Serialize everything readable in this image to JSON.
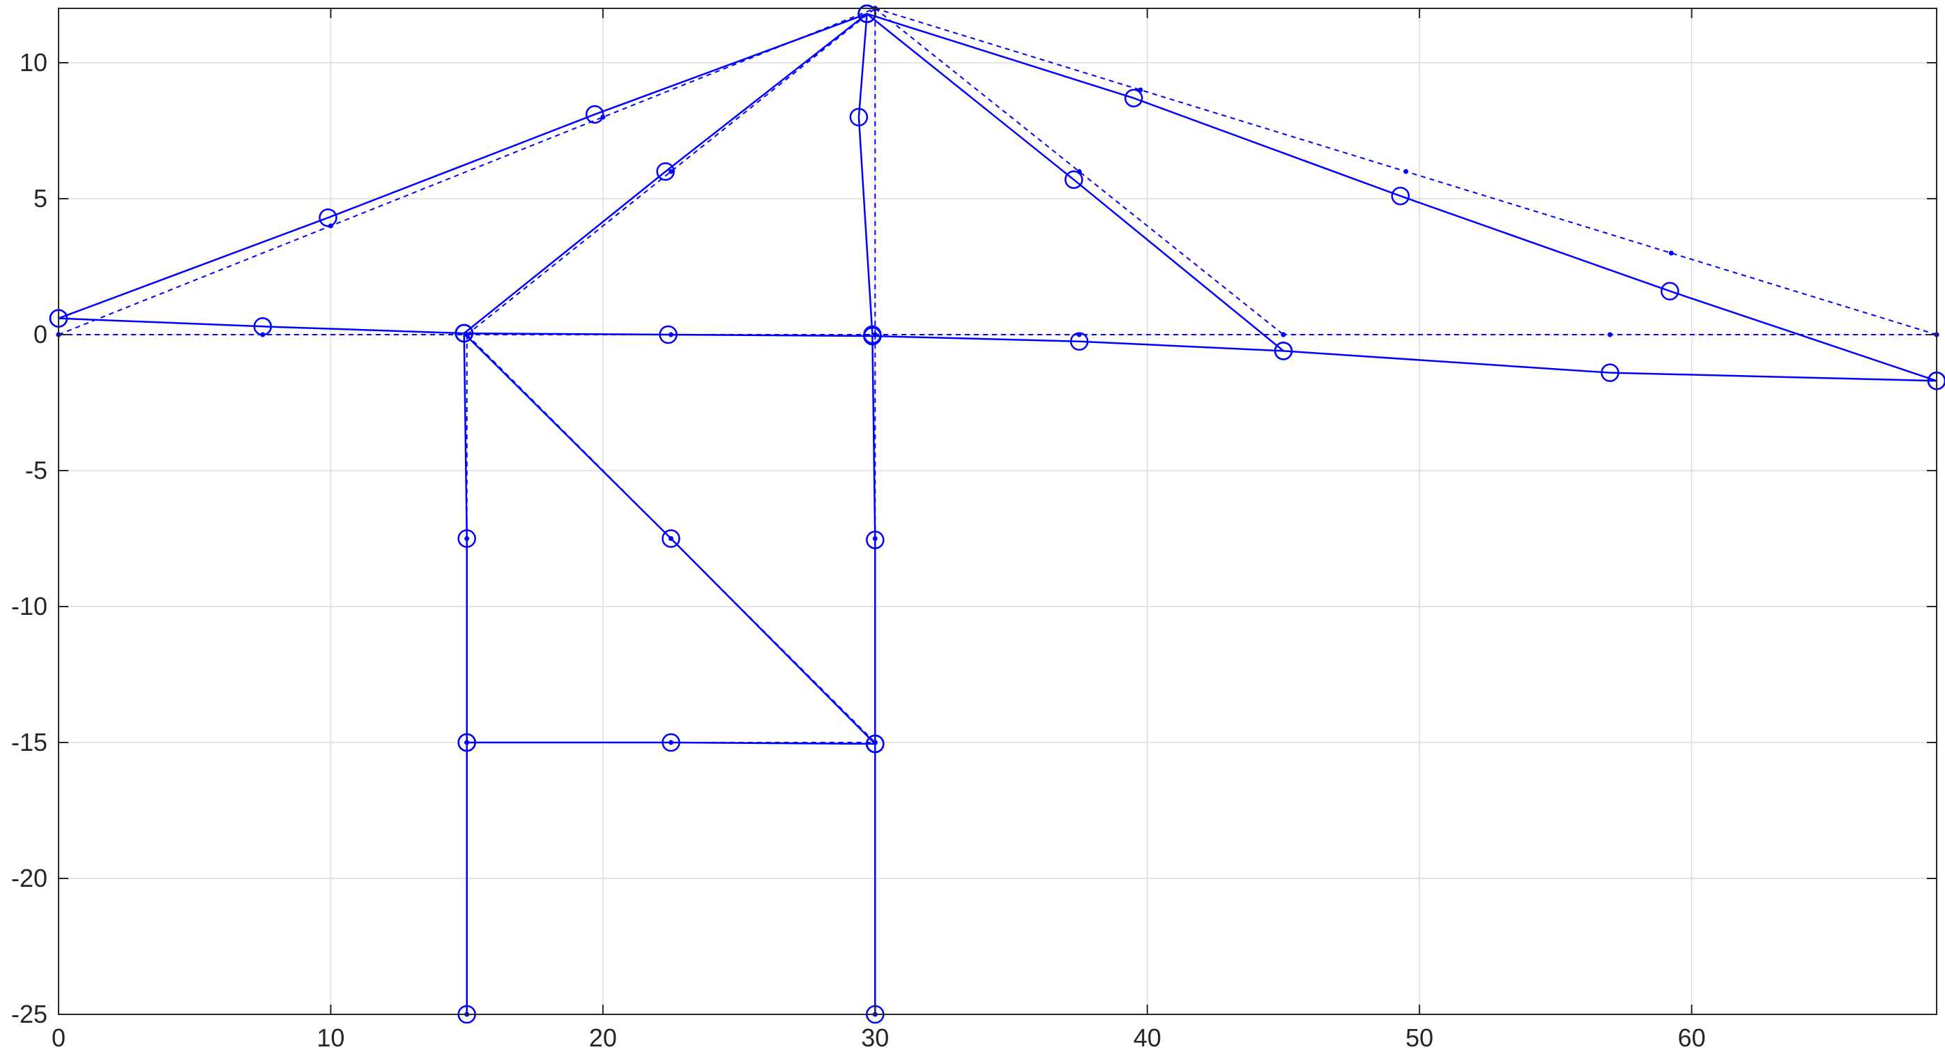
{
  "chart_data": {
    "type": "line",
    "title": "",
    "xlabel": "",
    "ylabel": "",
    "xlim": [
      0,
      69
    ],
    "ylim": [
      -25,
      12
    ],
    "xticks": [
      0,
      10,
      20,
      30,
      40,
      50,
      60
    ],
    "yticks": [
      -25,
      -20,
      -15,
      -10,
      -5,
      0,
      5,
      10
    ],
    "xtick_labels": [
      "0",
      "10",
      "20",
      "30",
      "40",
      "50",
      "60"
    ],
    "ytick_labels": [
      "-25",
      "-20",
      "-15",
      "-10",
      "-5",
      "0",
      "5",
      "10"
    ],
    "grid": true,
    "line_color": "#0000ff",
    "series": [
      {
        "style": "dashed",
        "marker": "dot",
        "members": [
          {
            "x": [
              0,
              10,
              20,
              30
            ],
            "y": [
              0,
              4,
              8,
              12
            ]
          },
          {
            "x": [
              15,
              22.5,
              30
            ],
            "y": [
              0,
              6,
              12
            ]
          },
          {
            "x": [
              30,
              30
            ],
            "y": [
              0,
              12
            ]
          },
          {
            "x": [
              30,
              37.5,
              45
            ],
            "y": [
              12,
              6,
              0
            ]
          },
          {
            "x": [
              30,
              39.75,
              49.5,
              59.25,
              69
            ],
            "y": [
              12,
              9,
              6,
              3,
              0
            ]
          },
          {
            "x": [
              0,
              7.5,
              15,
              22.5,
              30,
              37.5,
              45,
              57,
              69
            ],
            "y": [
              0,
              0,
              0,
              0,
              0,
              0,
              0,
              0,
              0
            ]
          },
          {
            "x": [
              15,
              15,
              15,
              15
            ],
            "y": [
              0,
              -7.5,
              -15,
              -25
            ]
          },
          {
            "x": [
              30,
              30,
              30,
              30
            ],
            "y": [
              0,
              -7.5,
              -15,
              -25
            ]
          },
          {
            "x": [
              15,
              22.5,
              30
            ],
            "y": [
              0,
              -7.5,
              -15
            ]
          },
          {
            "x": [
              15,
              22.5,
              30
            ],
            "y": [
              -15,
              -15,
              -15
            ]
          }
        ]
      },
      {
        "style": "solid",
        "marker": "circle",
        "members": [
          {
            "x": [
              0,
              9.9,
              19.7,
              29.7
            ],
            "y": [
              0.6,
              4.3,
              8.1,
              11.8
            ]
          },
          {
            "x": [
              14.9,
              22.3,
              29.7
            ],
            "y": [
              0.05,
              6.0,
              11.8
            ]
          },
          {
            "x": [
              29.9,
              29.4,
              29.7
            ],
            "y": [
              0,
              8.0,
              11.8
            ]
          },
          {
            "x": [
              29.7,
              37.3,
              45.0
            ],
            "y": [
              11.8,
              5.7,
              -0.6
            ]
          },
          {
            "x": [
              29.7,
              39.5,
              49.3,
              59.2,
              69
            ],
            "y": [
              11.8,
              8.7,
              5.1,
              1.6,
              -1.7
            ]
          },
          {
            "x": [
              0,
              7.5,
              14.9,
              22.4,
              29.9,
              37.5,
              45.0,
              57.0,
              69
            ],
            "y": [
              0.6,
              0.3,
              0.05,
              0.0,
              -0.05,
              -0.25,
              -0.6,
              -1.4,
              -1.7
            ]
          },
          {
            "x": [
              14.9,
              15.0,
              15.0,
              15.0
            ],
            "y": [
              0.05,
              -7.5,
              -15,
              -25
            ]
          },
          {
            "x": [
              29.9,
              30.0,
              30.0,
              30.0
            ],
            "y": [
              -0.05,
              -7.55,
              -15.05,
              -25
            ]
          },
          {
            "x": [
              14.9,
              22.5,
              30.0
            ],
            "y": [
              0.05,
              -7.5,
              -15.05
            ]
          },
          {
            "x": [
              15.0,
              22.5,
              30.0
            ],
            "y": [
              -15,
              -15,
              -15.05
            ]
          }
        ]
      }
    ]
  }
}
